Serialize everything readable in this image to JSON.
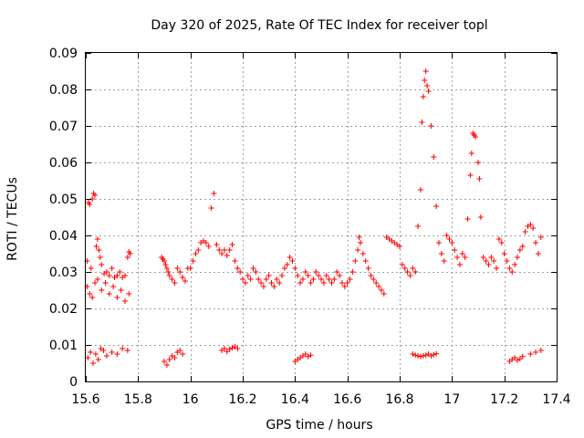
{
  "chart_data": {
    "type": "scatter",
    "title": "Day 320 of 2025, Rate Of TEC Index for receiver topl",
    "xlabel": "GPS time / hours",
    "ylabel": "ROTI / TECUs",
    "xlim": [
      15.6,
      17.4
    ],
    "ylim": [
      0,
      0.09
    ],
    "x_ticks": [
      15.6,
      15.8,
      16,
      16.2,
      16.4,
      16.6,
      16.8,
      17,
      17.2,
      17.4
    ],
    "x_tick_labels": [
      "15.6",
      "15.8",
      "16",
      "16.2",
      "16.4",
      "16.6",
      "16.8",
      "17",
      "17.2",
      "17.4"
    ],
    "y_ticks": [
      0,
      0.01,
      0.02,
      0.03,
      0.04,
      0.05,
      0.06,
      0.07,
      0.08,
      0.09
    ],
    "y_tick_labels": [
      "0",
      "0.01",
      "0.02",
      "0.03",
      "0.04",
      "0.05",
      "0.06",
      "0.07",
      "0.08",
      "0.09"
    ],
    "grid": true,
    "marker": "plus",
    "color": "#ff0000",
    "series": [
      {
        "values": [
          [
            15.605,
            0.033
          ],
          [
            15.61,
            0.049
          ],
          [
            15.615,
            0.0485
          ],
          [
            15.62,
            0.031
          ],
          [
            15.625,
            0.05
          ],
          [
            15.63,
            0.0515
          ],
          [
            15.635,
            0.051
          ],
          [
            15.64,
            0.037
          ],
          [
            15.645,
            0.039
          ],
          [
            15.65,
            0.036
          ],
          [
            15.655,
            0.034
          ],
          [
            15.66,
            0.032
          ],
          [
            15.67,
            0.0295
          ],
          [
            15.68,
            0.03
          ],
          [
            15.69,
            0.029
          ],
          [
            15.7,
            0.031
          ],
          [
            15.71,
            0.0285
          ],
          [
            15.72,
            0.029
          ],
          [
            15.73,
            0.03
          ],
          [
            15.74,
            0.0285
          ],
          [
            15.75,
            0.029
          ],
          [
            15.76,
            0.034
          ],
          [
            15.765,
            0.0355
          ],
          [
            15.77,
            0.035
          ],
          [
            15.605,
            0.026
          ],
          [
            15.615,
            0.024
          ],
          [
            15.625,
            0.023
          ],
          [
            15.635,
            0.027
          ],
          [
            15.645,
            0.028
          ],
          [
            15.66,
            0.025
          ],
          [
            15.675,
            0.027
          ],
          [
            15.69,
            0.024
          ],
          [
            15.705,
            0.026
          ],
          [
            15.72,
            0.023
          ],
          [
            15.735,
            0.025
          ],
          [
            15.75,
            0.022
          ],
          [
            15.765,
            0.024
          ],
          [
            15.608,
            0.0065
          ],
          [
            15.618,
            0.008
          ],
          [
            15.628,
            0.005
          ],
          [
            15.638,
            0.0075
          ],
          [
            15.648,
            0.006
          ],
          [
            15.658,
            0.009
          ],
          [
            15.668,
            0.0085
          ],
          [
            15.68,
            0.007
          ],
          [
            15.7,
            0.008
          ],
          [
            15.72,
            0.0075
          ],
          [
            15.74,
            0.009
          ],
          [
            15.76,
            0.0085
          ],
          [
            15.89,
            0.034
          ],
          [
            15.895,
            0.0335
          ],
          [
            15.9,
            0.033
          ],
          [
            15.905,
            0.032
          ],
          [
            15.91,
            0.031
          ],
          [
            15.915,
            0.03
          ],
          [
            15.92,
            0.029
          ],
          [
            15.93,
            0.028
          ],
          [
            15.94,
            0.027
          ],
          [
            15.95,
            0.031
          ],
          [
            15.96,
            0.03
          ],
          [
            15.97,
            0.0285
          ],
          [
            15.98,
            0.0275
          ],
          [
            15.99,
            0.031
          ],
          [
            15.9,
            0.0055
          ],
          [
            15.91,
            0.0045
          ],
          [
            15.92,
            0.006
          ],
          [
            15.93,
            0.007
          ],
          [
            15.94,
            0.0065
          ],
          [
            15.95,
            0.008
          ],
          [
            15.96,
            0.0085
          ],
          [
            15.97,
            0.0075
          ],
          [
            16.0,
            0.031
          ],
          [
            16.01,
            0.033
          ],
          [
            16.02,
            0.035
          ],
          [
            16.03,
            0.036
          ],
          [
            16.04,
            0.038
          ],
          [
            16.05,
            0.0385
          ],
          [
            16.06,
            0.038
          ],
          [
            16.07,
            0.037
          ],
          [
            16.08,
            0.0475
          ],
          [
            16.09,
            0.0515
          ],
          [
            16.1,
            0.0375
          ],
          [
            16.11,
            0.036
          ],
          [
            16.12,
            0.035
          ],
          [
            16.13,
            0.036
          ],
          [
            16.14,
            0.0345
          ],
          [
            16.15,
            0.036
          ],
          [
            16.16,
            0.0375
          ],
          [
            16.17,
            0.033
          ],
          [
            16.18,
            0.031
          ],
          [
            16.19,
            0.03
          ],
          [
            16.2,
            0.028
          ],
          [
            16.21,
            0.027
          ],
          [
            16.22,
            0.029
          ],
          [
            16.23,
            0.028
          ],
          [
            16.24,
            0.031
          ],
          [
            16.25,
            0.03
          ],
          [
            16.26,
            0.028
          ],
          [
            16.27,
            0.027
          ],
          [
            16.28,
            0.026
          ],
          [
            16.29,
            0.028
          ],
          [
            16.3,
            0.029
          ],
          [
            16.31,
            0.027
          ],
          [
            16.32,
            0.026
          ],
          [
            16.33,
            0.028
          ],
          [
            16.34,
            0.027
          ],
          [
            16.35,
            0.029
          ],
          [
            16.36,
            0.031
          ],
          [
            16.37,
            0.032
          ],
          [
            16.38,
            0.034
          ],
          [
            16.39,
            0.033
          ],
          [
            16.4,
            0.031
          ],
          [
            16.41,
            0.029
          ],
          [
            16.42,
            0.027
          ],
          [
            16.43,
            0.028
          ],
          [
            16.44,
            0.03
          ],
          [
            16.45,
            0.029
          ],
          [
            16.46,
            0.027
          ],
          [
            16.47,
            0.028
          ],
          [
            16.48,
            0.03
          ],
          [
            16.49,
            0.029
          ],
          [
            16.5,
            0.028
          ],
          [
            16.51,
            0.027
          ],
          [
            16.52,
            0.029
          ],
          [
            16.53,
            0.028
          ],
          [
            16.54,
            0.027
          ],
          [
            16.55,
            0.028
          ],
          [
            16.56,
            0.03
          ],
          [
            16.57,
            0.029
          ],
          [
            16.58,
            0.027
          ],
          [
            16.59,
            0.026
          ],
          [
            16.6,
            0.027
          ],
          [
            16.61,
            0.028
          ],
          [
            16.62,
            0.03
          ],
          [
            16.63,
            0.033
          ],
          [
            16.64,
            0.036
          ],
          [
            16.645,
            0.0395
          ],
          [
            16.65,
            0.038
          ],
          [
            16.66,
            0.035
          ],
          [
            16.67,
            0.033
          ],
          [
            16.68,
            0.031
          ],
          [
            16.69,
            0.029
          ],
          [
            16.7,
            0.028
          ],
          [
            16.71,
            0.027
          ],
          [
            16.72,
            0.026
          ],
          [
            16.73,
            0.025
          ],
          [
            16.74,
            0.024
          ],
          [
            16.75,
            0.0395
          ],
          [
            16.76,
            0.039
          ],
          [
            16.77,
            0.0385
          ],
          [
            16.78,
            0.038
          ],
          [
            16.79,
            0.0375
          ],
          [
            16.8,
            0.037
          ],
          [
            16.81,
            0.032
          ],
          [
            16.82,
            0.031
          ],
          [
            16.83,
            0.03
          ],
          [
            16.84,
            0.029
          ],
          [
            16.85,
            0.031
          ],
          [
            16.86,
            0.03
          ],
          [
            16.87,
            0.0425
          ],
          [
            16.88,
            0.0525
          ],
          [
            16.885,
            0.071
          ],
          [
            16.89,
            0.078
          ],
          [
            16.895,
            0.0825
          ],
          [
            16.9,
            0.085
          ],
          [
            16.905,
            0.081
          ],
          [
            16.91,
            0.0795
          ],
          [
            16.92,
            0.07
          ],
          [
            16.93,
            0.0615
          ],
          [
            16.94,
            0.048
          ],
          [
            16.95,
            0.038
          ],
          [
            16.96,
            0.035
          ],
          [
            16.97,
            0.033
          ],
          [
            16.98,
            0.04
          ],
          [
            16.99,
            0.039
          ],
          [
            17.0,
            0.038
          ],
          [
            17.01,
            0.036
          ],
          [
            17.02,
            0.034
          ],
          [
            17.03,
            0.032
          ],
          [
            17.04,
            0.035
          ],
          [
            17.05,
            0.034
          ],
          [
            17.06,
            0.0445
          ],
          [
            17.07,
            0.0565
          ],
          [
            17.075,
            0.0625
          ],
          [
            17.08,
            0.068
          ],
          [
            17.085,
            0.0675
          ],
          [
            17.09,
            0.067
          ],
          [
            17.1,
            0.06
          ],
          [
            17.105,
            0.0555
          ],
          [
            17.11,
            0.045
          ],
          [
            17.12,
            0.034
          ],
          [
            17.13,
            0.033
          ],
          [
            17.14,
            0.032
          ],
          [
            17.15,
            0.034
          ],
          [
            17.16,
            0.033
          ],
          [
            17.17,
            0.031
          ],
          [
            17.18,
            0.039
          ],
          [
            17.19,
            0.038
          ],
          [
            17.2,
            0.035
          ],
          [
            17.21,
            0.033
          ],
          [
            17.22,
            0.031
          ],
          [
            17.23,
            0.03
          ],
          [
            17.24,
            0.032
          ],
          [
            17.25,
            0.034
          ],
          [
            17.26,
            0.036
          ],
          [
            17.27,
            0.037
          ],
          [
            17.28,
            0.041
          ],
          [
            17.29,
            0.0425
          ],
          [
            17.3,
            0.043
          ],
          [
            17.31,
            0.042
          ],
          [
            17.32,
            0.038
          ],
          [
            17.33,
            0.035
          ],
          [
            17.34,
            0.0395
          ],
          [
            16.85,
            0.0075
          ],
          [
            16.86,
            0.0072
          ],
          [
            16.87,
            0.007
          ],
          [
            16.88,
            0.0068
          ],
          [
            16.89,
            0.007
          ],
          [
            16.9,
            0.0072
          ],
          [
            16.91,
            0.0075
          ],
          [
            16.92,
            0.007
          ],
          [
            16.93,
            0.0073
          ],
          [
            16.94,
            0.0076
          ],
          [
            17.22,
            0.0055
          ],
          [
            17.23,
            0.006
          ],
          [
            17.24,
            0.0065
          ],
          [
            17.25,
            0.0058
          ],
          [
            17.26,
            0.0062
          ],
          [
            17.27,
            0.0068
          ],
          [
            17.3,
            0.0075
          ],
          [
            17.32,
            0.008
          ],
          [
            17.34,
            0.0085
          ],
          [
            16.4,
            0.0055
          ],
          [
            16.41,
            0.006
          ],
          [
            16.42,
            0.0065
          ],
          [
            16.43,
            0.007
          ],
          [
            16.44,
            0.0075
          ],
          [
            16.45,
            0.0068
          ],
          [
            16.46,
            0.0072
          ],
          [
            16.12,
            0.0085
          ],
          [
            16.13,
            0.009
          ],
          [
            16.14,
            0.0082
          ],
          [
            16.15,
            0.0088
          ],
          [
            16.16,
            0.0092
          ],
          [
            16.17,
            0.0095
          ],
          [
            16.18,
            0.009
          ]
        ]
      }
    ]
  }
}
